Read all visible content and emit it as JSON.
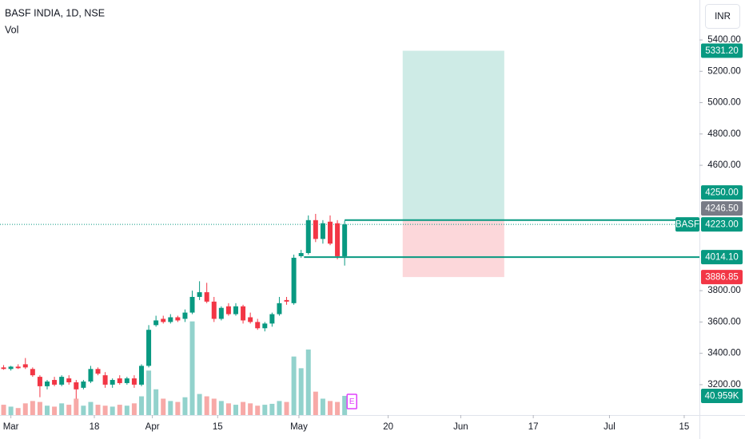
{
  "chart_data": {
    "type": "candlestick",
    "title": "BASF INDIA, 1D, NSE",
    "subtitle": "Vol",
    "currency": "INR",
    "up_color": "#089981",
    "down_color": "#f23645",
    "volume_up_color": "#92d2cc",
    "volume_down_color": "#f7a9a7",
    "open": [
      3310,
      3300,
      3315,
      3330,
      3300,
      3250,
      3190,
      3230,
      3200,
      3240,
      3215,
      3180,
      3220,
      3300,
      3260,
      3200,
      3240,
      3210,
      3240,
      3200,
      3320,
      3580,
      3620,
      3600,
      3630,
      3620,
      3660,
      3760,
      3790,
      3730,
      3620,
      3700,
      3650,
      3700,
      3630,
      3600,
      3560,
      3590,
      3650,
      3740,
      3720,
      4020,
      4040,
      4250,
      4130,
      4240,
      4230,
      4020
    ],
    "high": [
      3325,
      3320,
      3330,
      3370,
      3310,
      3260,
      3230,
      3250,
      3260,
      3260,
      3230,
      3230,
      3320,
      3310,
      3280,
      3240,
      3260,
      3250,
      3260,
      3330,
      3580,
      3640,
      3640,
      3650,
      3640,
      3680,
      3800,
      3860,
      3850,
      3760,
      3700,
      3720,
      3720,
      3710,
      3660,
      3620,
      3600,
      3660,
      3760,
      3760,
      4030,
      4060,
      4280,
      4290,
      4250,
      4280,
      4250,
      4246.5
    ],
    "low": [
      3295,
      3290,
      3300,
      3300,
      3250,
      3120,
      3170,
      3190,
      3190,
      3200,
      3110,
      3170,
      3210,
      3260,
      3180,
      3180,
      3200,
      3200,
      3180,
      3190,
      3310,
      3570,
      3590,
      3590,
      3600,
      3600,
      3650,
      3740,
      3720,
      3600,
      3610,
      3640,
      3640,
      3590,
      3590,
      3550,
      3540,
      3570,
      3640,
      3710,
      3710,
      4010,
      4030,
      4110,
      4100,
      4090,
      4000,
      3960
    ],
    "close": [
      3300,
      3315,
      3305,
      3310,
      3260,
      3190,
      3220,
      3200,
      3250,
      3215,
      3170,
      3220,
      3300,
      3270,
      3200,
      3230,
      3210,
      3240,
      3200,
      3320,
      3550,
      3610,
      3600,
      3630,
      3610,
      3660,
      3760,
      3790,
      3730,
      3620,
      3690,
      3650,
      3700,
      3610,
      3600,
      3560,
      3590,
      3650,
      3720,
      3730,
      4010,
      4040,
      4250,
      4130,
      4230,
      4100,
      4020,
      4223
    ],
    "volume": [
      22000,
      18000,
      15000,
      25000,
      30000,
      28000,
      20000,
      18000,
      25000,
      22000,
      35000,
      20000,
      28000,
      22000,
      20000,
      18000,
      22000,
      20000,
      25000,
      40000,
      95000,
      55000,
      35000,
      30000,
      28000,
      38000,
      200000,
      45000,
      40000,
      35000,
      30000,
      25000,
      22000,
      28000,
      25000,
      20000,
      22000,
      24000,
      30000,
      28000,
      125000,
      100000,
      140000,
      50000,
      35000,
      30000,
      28000,
      40959
    ],
    "xlim": [
      -0.5,
      95.9
    ],
    "xticks": [
      {
        "value": 1,
        "label": "Mar"
      },
      {
        "value": 12.5,
        "label": "18"
      },
      {
        "value": 20.5,
        "label": "Apr"
      },
      {
        "value": 29.5,
        "label": "15"
      },
      {
        "value": 40.7,
        "label": "May"
      },
      {
        "value": 53,
        "label": "20"
      },
      {
        "value": 63,
        "label": "Jun"
      },
      {
        "value": 73,
        "label": "17"
      },
      {
        "value": 83.5,
        "label": "Jul"
      },
      {
        "value": 93.8,
        "label": "15"
      }
    ],
    "ylim": [
      3006,
      5655
    ],
    "yticks": [
      {
        "value": 5400,
        "label": "5400.00"
      },
      {
        "value": 5200,
        "label": "5200.00"
      },
      {
        "value": 5000,
        "label": "5000.00"
      },
      {
        "value": 4800,
        "label": "4800.00"
      },
      {
        "value": 4600,
        "label": "4600.00"
      },
      {
        "value": 3800,
        "label": "3800.00"
      },
      {
        "value": 3600,
        "label": "3600.00"
      },
      {
        "value": 3400,
        "label": "3400.00"
      },
      {
        "value": 3200,
        "label": "3200.00"
      }
    ],
    "volume_ylim": [
      0,
      300000
    ],
    "position": {
      "start": 55,
      "end": 69,
      "entry": 4250,
      "target": 5331.2,
      "stop": 3886.85
    },
    "levels": [
      {
        "value": 4250,
        "start": 47
      },
      {
        "value": 4014.1,
        "start": 41.4
      }
    ],
    "last_price": 4223,
    "symbol": "BASF",
    "price_tags": [
      {
        "value": 5331.2,
        "label": "5331.20",
        "color": "#089981"
      },
      {
        "value": 4250,
        "label": "4250.00",
        "color": "#089981"
      },
      {
        "value": 4246.5,
        "label": "4246.50",
        "color": "#787b86"
      },
      {
        "value": 4223,
        "label": "4223.00",
        "color": "#089981"
      },
      {
        "value": 4014.1,
        "label": "4014.10",
        "color": "#089981"
      },
      {
        "value": 3886.85,
        "label": "3886.85",
        "color": "#f23645"
      }
    ],
    "volume_tag": {
      "value": 40959,
      "label": "40.959K",
      "color": "#089981"
    },
    "events": [
      {
        "index": 48,
        "label": "E"
      }
    ]
  }
}
